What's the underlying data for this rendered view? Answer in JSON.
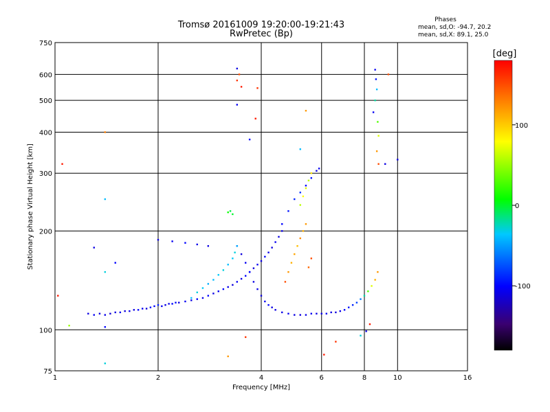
{
  "chart_data": {
    "type": "scatter",
    "title": "Tromsø 20161009 19:20:00-19:21:43",
    "subtitle": "RwPretec (Bp)",
    "stats": {
      "title": "Phases",
      "line1": "mean, sd,O: -94.7, 20.2",
      "line2": "mean, sd,X:  89.1, 25.0"
    },
    "xlabel": "Frequency [MHz]",
    "ylabel": "Stationary phase Virtual Height [km]",
    "xscale": "log",
    "yscale": "log",
    "xlim": [
      1,
      16
    ],
    "ylim": [
      75,
      750
    ],
    "xticks": [
      1,
      2,
      4,
      6,
      8,
      10,
      16
    ],
    "yticks": [
      75,
      100,
      200,
      300,
      400,
      500,
      600,
      750
    ],
    "xgrid": [
      2,
      4,
      6,
      8,
      10
    ],
    "ygrid": [
      100,
      200,
      300,
      400,
      500,
      600
    ],
    "grid": true,
    "colorbar": {
      "label": "[deg]",
      "min": -180,
      "max": 180,
      "ticks": [
        100,
        0,
        -100
      ],
      "placement": "right"
    },
    "series": [
      {
        "points": [
          [
            1.25,
            112,
            -110
          ],
          [
            1.3,
            111,
            -105
          ],
          [
            1.35,
            112,
            -112
          ],
          [
            1.4,
            111,
            -108
          ],
          [
            1.45,
            112,
            -115
          ],
          [
            1.5,
            113,
            -110
          ],
          [
            1.55,
            113,
            -105
          ],
          [
            1.6,
            114,
            -112
          ],
          [
            1.65,
            114,
            -108
          ],
          [
            1.7,
            115,
            -110
          ],
          [
            1.75,
            115,
            -100
          ],
          [
            1.8,
            116,
            -105
          ],
          [
            1.85,
            116,
            -112
          ],
          [
            1.9,
            117,
            -95
          ],
          [
            1.95,
            118,
            -100
          ],
          [
            2.0,
            119,
            -90
          ],
          [
            2.05,
            118,
            -105
          ],
          [
            2.1,
            119,
            -110
          ],
          [
            2.15,
            120,
            -108
          ],
          [
            2.2,
            120,
            -100
          ],
          [
            2.25,
            121,
            -98
          ],
          [
            2.3,
            121,
            -112
          ],
          [
            2.4,
            122,
            -105
          ],
          [
            2.5,
            123,
            -110
          ],
          [
            2.6,
            124,
            -102
          ],
          [
            2.7,
            125,
            -108
          ],
          [
            2.8,
            127,
            -100
          ],
          [
            2.9,
            129,
            -110
          ],
          [
            3.0,
            131,
            -105
          ],
          [
            3.1,
            133,
            -100
          ],
          [
            3.2,
            135,
            -108
          ],
          [
            3.3,
            137,
            -112
          ],
          [
            3.4,
            140,
            -104
          ],
          [
            3.5,
            143,
            -110
          ],
          [
            3.6,
            146,
            -100
          ],
          [
            3.7,
            150,
            -108
          ],
          [
            3.8,
            154,
            -112
          ],
          [
            3.9,
            158,
            -105
          ],
          [
            4.0,
            162,
            -110
          ],
          [
            4.1,
            167,
            -100
          ],
          [
            4.2,
            172,
            -108
          ],
          [
            4.3,
            178,
            -112
          ],
          [
            4.4,
            185,
            -105
          ],
          [
            4.5,
            192,
            -110
          ],
          [
            4.6,
            200,
            -108
          ]
        ]
      },
      {
        "points": [
          [
            3.4,
            180,
            -108
          ],
          [
            3.5,
            170,
            -112
          ],
          [
            3.6,
            160,
            -105
          ],
          [
            3.7,
            150,
            -100
          ],
          [
            3.8,
            140,
            -110
          ],
          [
            3.9,
            133,
            -108
          ],
          [
            4.0,
            127,
            -112
          ],
          [
            4.1,
            122,
            -105
          ],
          [
            4.2,
            119,
            -100
          ],
          [
            4.3,
            117,
            -110
          ],
          [
            4.4,
            115,
            -110
          ],
          [
            4.6,
            113,
            -108
          ],
          [
            4.8,
            112,
            -105
          ],
          [
            5.0,
            111,
            -110
          ],
          [
            5.2,
            111,
            -112
          ],
          [
            5.4,
            111,
            -108
          ],
          [
            5.6,
            112,
            -105
          ],
          [
            5.8,
            112,
            -110
          ],
          [
            6.0,
            112,
            -108
          ],
          [
            6.2,
            112,
            -105
          ],
          [
            6.4,
            113,
            -110
          ],
          [
            6.6,
            113,
            -112
          ],
          [
            6.8,
            114,
            -108
          ],
          [
            7.0,
            115,
            -100
          ],
          [
            7.2,
            117,
            -95
          ],
          [
            7.4,
            119,
            -90
          ],
          [
            7.6,
            121,
            -80
          ],
          [
            7.8,
            124,
            -60
          ],
          [
            8.0,
            127,
            -20
          ],
          [
            8.2,
            131,
            30
          ],
          [
            8.4,
            136,
            70
          ],
          [
            8.6,
            142,
            110
          ],
          [
            8.75,
            150,
            120
          ]
        ]
      },
      {
        "points": [
          [
            2.5,
            125,
            -40
          ],
          [
            2.6,
            130,
            -30
          ],
          [
            2.7,
            134,
            -35
          ],
          [
            2.8,
            138,
            -45
          ],
          [
            2.9,
            142,
            -40
          ],
          [
            3.0,
            147,
            -35
          ],
          [
            3.1,
            152,
            -30
          ],
          [
            3.2,
            158,
            -40
          ],
          [
            3.3,
            165,
            -35
          ],
          [
            3.35,
            172,
            -30
          ],
          [
            3.4,
            180,
            -45
          ],
          [
            3.3,
            225,
            0
          ],
          [
            3.2,
            228,
            10
          ],
          [
            3.25,
            230,
            -5
          ]
        ]
      },
      {
        "points": [
          [
            4.8,
            150,
            120
          ],
          [
            4.9,
            160,
            110
          ],
          [
            5.0,
            170,
            115
          ],
          [
            5.1,
            180,
            105
          ],
          [
            5.2,
            190,
            125
          ],
          [
            5.3,
            200,
            110
          ],
          [
            5.4,
            210,
            120
          ],
          [
            4.7,
            140,
            150
          ],
          [
            5.5,
            155,
            140
          ],
          [
            5.6,
            165,
            150
          ],
          [
            5.2,
            240,
            60
          ],
          [
            5.3,
            255,
            80
          ],
          [
            5.4,
            270,
            70
          ],
          [
            5.5,
            285,
            60
          ],
          [
            5.6,
            300,
            90
          ]
        ]
      },
      {
        "points": [
          [
            4.6,
            210,
            -100
          ],
          [
            4.8,
            230,
            -95
          ],
          [
            5.0,
            250,
            -90
          ],
          [
            5.2,
            262,
            -85
          ],
          [
            5.4,
            275,
            -100
          ],
          [
            5.6,
            290,
            -95
          ],
          [
            5.8,
            305,
            -110
          ],
          [
            5.9,
            310,
            -105
          ]
        ]
      },
      {
        "points": [
          [
            8.6,
            620,
            -105
          ],
          [
            8.65,
            580,
            -95
          ],
          [
            8.7,
            540,
            -40
          ],
          [
            8.6,
            500,
            -20
          ],
          [
            8.5,
            460,
            -105
          ],
          [
            8.75,
            430,
            30
          ],
          [
            8.8,
            390,
            70
          ],
          [
            8.7,
            350,
            120
          ],
          [
            8.8,
            320,
            150
          ],
          [
            9.2,
            320,
            -110
          ],
          [
            10.0,
            330,
            -110
          ],
          [
            9.4,
            600,
            150
          ]
        ]
      },
      {
        "points": [
          [
            3.4,
            625,
            -110
          ],
          [
            3.45,
            600,
            150
          ],
          [
            3.4,
            575,
            160
          ],
          [
            3.5,
            550,
            170
          ],
          [
            3.4,
            485,
            -105
          ],
          [
            3.9,
            545,
            160
          ],
          [
            3.85,
            440,
            170
          ],
          [
            3.7,
            380,
            -100
          ],
          [
            5.4,
            465,
            120
          ],
          [
            5.2,
            355,
            -40
          ],
          [
            1.4,
            400,
            130
          ],
          [
            1.05,
            320,
            170
          ],
          [
            1.4,
            250,
            -40
          ],
          [
            1.3,
            178,
            -110
          ],
          [
            1.5,
            160,
            -100
          ],
          [
            1.4,
            150,
            -30
          ],
          [
            1.02,
            127,
            170
          ],
          [
            1.1,
            103,
            50
          ],
          [
            1.4,
            102,
            -100
          ],
          [
            1.4,
            79,
            -30
          ],
          [
            3.6,
            95,
            160
          ],
          [
            3.2,
            83,
            120
          ],
          [
            6.1,
            84,
            170
          ],
          [
            6.6,
            92,
            160
          ],
          [
            7.8,
            96,
            -30
          ],
          [
            8.1,
            99,
            -110
          ],
          [
            8.3,
            104,
            170
          ],
          [
            2.0,
            188,
            -110
          ],
          [
            2.2,
            186,
            -105
          ],
          [
            2.4,
            184,
            -100
          ],
          [
            2.6,
            182,
            -108
          ],
          [
            2.8,
            180,
            -110
          ]
        ]
      }
    ]
  }
}
